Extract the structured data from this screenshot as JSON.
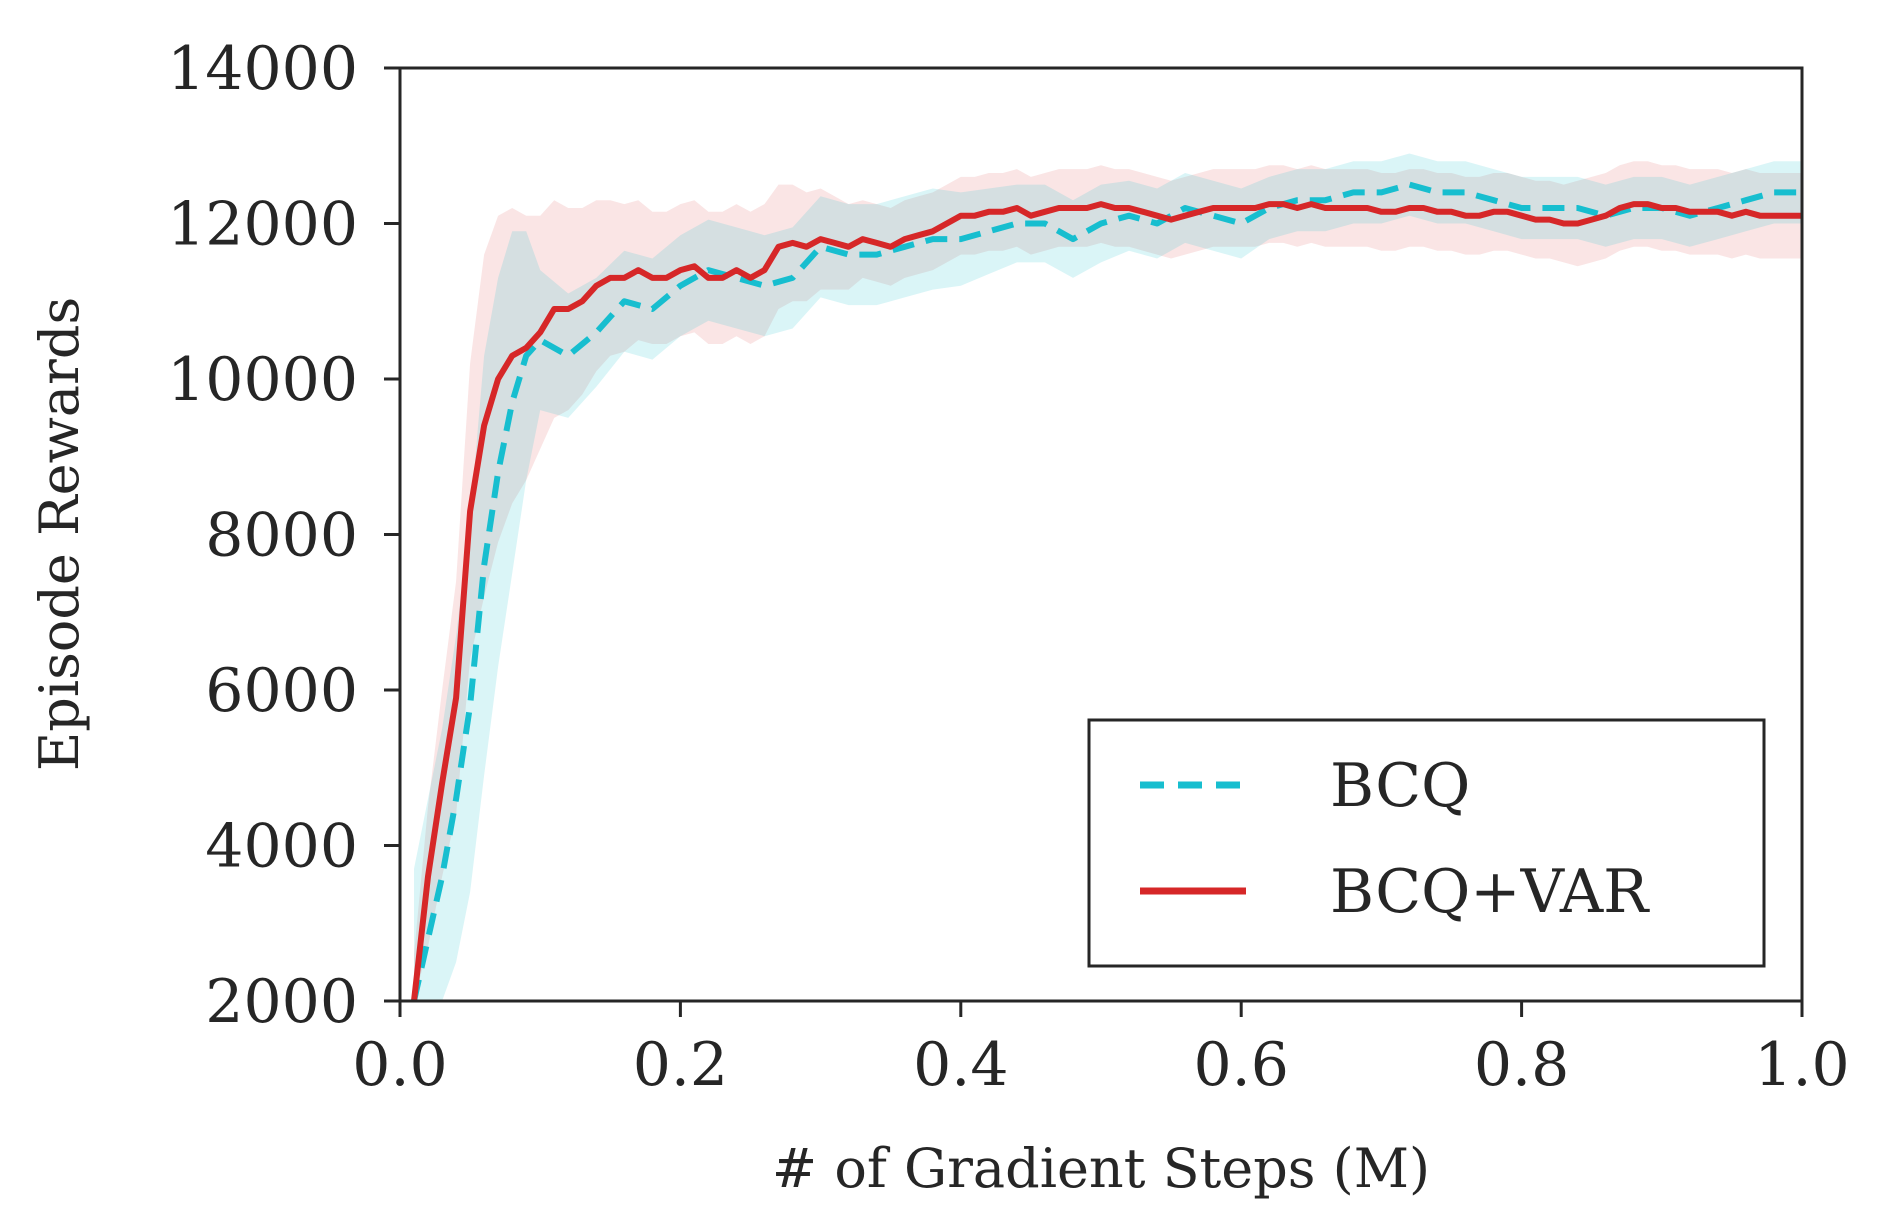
{
  "chart_data": {
    "type": "line",
    "title": "",
    "xlabel": "# of Gradient Steps (M)",
    "ylabel": "Episode Rewards",
    "xlim": [
      0.0,
      1.0
    ],
    "ylim": [
      2000,
      14000
    ],
    "xticks": [
      0.0,
      0.2,
      0.4,
      0.6,
      0.8,
      1.0
    ],
    "xtick_labels": [
      "0.0",
      "0.2",
      "0.4",
      "0.6",
      "0.8",
      "1.0"
    ],
    "yticks": [
      2000,
      4000,
      6000,
      8000,
      10000,
      12000,
      14000
    ],
    "ytick_labels": [
      "2000",
      "4000",
      "6000",
      "8000",
      "10000",
      "12000",
      "14000"
    ],
    "grid": false,
    "legend_position": "lower-right",
    "series": [
      {
        "name": "BCQ",
        "style": "dashed",
        "color": "#17becf",
        "x": [
          0.01,
          0.02,
          0.03,
          0.04,
          0.05,
          0.06,
          0.07,
          0.08,
          0.09,
          0.1,
          0.12,
          0.14,
          0.16,
          0.18,
          0.2,
          0.22,
          0.24,
          0.26,
          0.28,
          0.3,
          0.32,
          0.34,
          0.36,
          0.38,
          0.4,
          0.42,
          0.44,
          0.46,
          0.48,
          0.5,
          0.52,
          0.54,
          0.56,
          0.58,
          0.6,
          0.62,
          0.64,
          0.66,
          0.68,
          0.7,
          0.72,
          0.74,
          0.76,
          0.78,
          0.8,
          0.82,
          0.84,
          0.86,
          0.88,
          0.9,
          0.92,
          0.94,
          0.96,
          0.98,
          1.0
        ],
        "values": [
          2000,
          2800,
          3600,
          4600,
          5800,
          7600,
          8800,
          9700,
          10300,
          10500,
          10300,
          10600,
          11000,
          10900,
          11200,
          11400,
          11300,
          11200,
          11300,
          11700,
          11600,
          11600,
          11700,
          11800,
          11800,
          11900,
          12000,
          12000,
          11800,
          12000,
          12100,
          12000,
          12200,
          12100,
          12000,
          12200,
          12300,
          12300,
          12400,
          12400,
          12500,
          12400,
          12400,
          12300,
          12200,
          12200,
          12200,
          12100,
          12200,
          12200,
          12100,
          12200,
          12300,
          12400,
          12400
        ],
        "band": [
          1700,
          1800,
          1900,
          2100,
          2400,
          2700,
          2500,
          2200,
          1600,
          900,
          800,
          700,
          650,
          650,
          650,
          650,
          650,
          650,
          650,
          650,
          650,
          650,
          650,
          650,
          600,
          550,
          500,
          500,
          500,
          500,
          450,
          450,
          450,
          450,
          450,
          400,
          400,
          400,
          400,
          400,
          400,
          400,
          400,
          400,
          400,
          400,
          400,
          400,
          400,
          400,
          400,
          400,
          400,
          400,
          400
        ]
      },
      {
        "name": "BCQ+VAR",
        "style": "solid",
        "color": "#d62728",
        "x": [
          0.01,
          0.02,
          0.03,
          0.04,
          0.05,
          0.06,
          0.07,
          0.08,
          0.09,
          0.1,
          0.11,
          0.12,
          0.13,
          0.14,
          0.15,
          0.16,
          0.17,
          0.18,
          0.19,
          0.2,
          0.21,
          0.22,
          0.23,
          0.24,
          0.25,
          0.26,
          0.27,
          0.28,
          0.29,
          0.3,
          0.31,
          0.32,
          0.33,
          0.34,
          0.35,
          0.36,
          0.37,
          0.38,
          0.39,
          0.4,
          0.41,
          0.42,
          0.43,
          0.44,
          0.45,
          0.46,
          0.47,
          0.48,
          0.49,
          0.5,
          0.51,
          0.52,
          0.53,
          0.54,
          0.55,
          0.56,
          0.57,
          0.58,
          0.59,
          0.6,
          0.61,
          0.62,
          0.63,
          0.64,
          0.65,
          0.66,
          0.67,
          0.68,
          0.69,
          0.7,
          0.71,
          0.72,
          0.73,
          0.74,
          0.75,
          0.76,
          0.77,
          0.78,
          0.79,
          0.8,
          0.81,
          0.82,
          0.83,
          0.84,
          0.85,
          0.86,
          0.87,
          0.88,
          0.89,
          0.9,
          0.91,
          0.92,
          0.93,
          0.94,
          0.95,
          0.96,
          0.97,
          0.98,
          0.99,
          1.0
        ],
        "values": [
          2000,
          3600,
          4800,
          5900,
          8300,
          9400,
          10000,
          10300,
          10400,
          10600,
          10900,
          10900,
          11000,
          11200,
          11300,
          11300,
          11400,
          11300,
          11300,
          11400,
          11450,
          11300,
          11300,
          11400,
          11300,
          11400,
          11700,
          11750,
          11700,
          11800,
          11750,
          11700,
          11800,
          11750,
          11700,
          11800,
          11850,
          11900,
          12000,
          12100,
          12100,
          12150,
          12150,
          12200,
          12100,
          12150,
          12200,
          12200,
          12200,
          12250,
          12200,
          12200,
          12150,
          12100,
          12050,
          12100,
          12150,
          12200,
          12200,
          12200,
          12200,
          12250,
          12250,
          12200,
          12250,
          12200,
          12200,
          12200,
          12200,
          12150,
          12150,
          12200,
          12200,
          12150,
          12150,
          12100,
          12100,
          12150,
          12150,
          12100,
          12050,
          12050,
          12000,
          12000,
          12050,
          12100,
          12200,
          12250,
          12250,
          12200,
          12200,
          12150,
          12150,
          12150,
          12100,
          12150,
          12100,
          12100,
          12100,
          12100
        ],
        "band": [
          600,
          900,
          1200,
          1500,
          1900,
          2200,
          2100,
          1900,
          1700,
          1500,
          1400,
          1300,
          1200,
          1100,
          1000,
          950,
          900,
          850,
          850,
          850,
          850,
          850,
          850,
          850,
          850,
          850,
          800,
          750,
          700,
          650,
          600,
          550,
          500,
          500,
          500,
          500,
          500,
          500,
          500,
          500,
          500,
          500,
          500,
          500,
          500,
          500,
          500,
          500,
          500,
          500,
          500,
          500,
          500,
          500,
          500,
          500,
          500,
          500,
          500,
          500,
          500,
          500,
          500,
          500,
          500,
          500,
          500,
          500,
          500,
          500,
          500,
          500,
          500,
          500,
          500,
          500,
          500,
          500,
          500,
          500,
          500,
          500,
          500,
          550,
          550,
          550,
          550,
          550,
          550,
          550,
          550,
          550,
          550,
          550,
          550,
          550,
          550,
          550,
          550,
          550
        ]
      }
    ]
  }
}
